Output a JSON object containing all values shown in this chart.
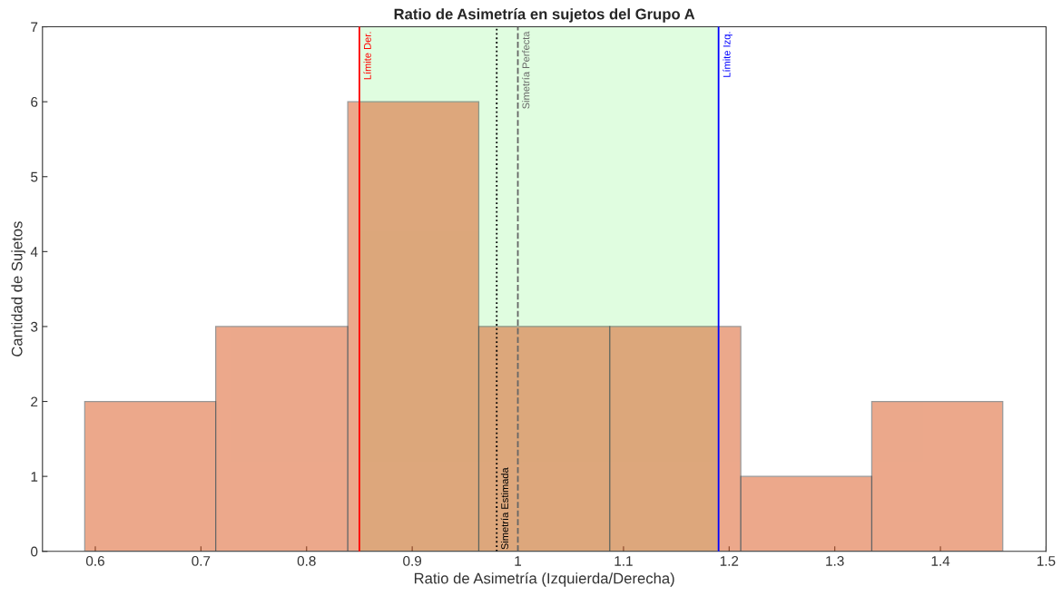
{
  "chart_data": {
    "type": "histogram",
    "title": "Ratio de Asimetría en sujetos del Grupo A",
    "xlabel": "Ratio de Asimetría (Izquierda/Derecha)",
    "ylabel": "Cantidad de Sujetos",
    "bins": [
      0.59,
      0.714,
      0.839,
      0.963,
      1.087,
      1.211,
      1.335,
      1.459
    ],
    "values": [
      2,
      3,
      6,
      3,
      3,
      1,
      2
    ],
    "color": "#d95319",
    "xlim": [
      0.55,
      1.5
    ],
    "xticks": [
      0.6,
      0.7,
      0.8,
      0.9,
      1,
      1.1,
      1.2,
      1.3,
      1.4,
      1.5
    ],
    "ylim": [
      0,
      7
    ],
    "yticks": [
      0,
      1,
      2,
      3,
      4,
      5,
      6,
      7
    ],
    "grid": false,
    "bands": [
      {
        "axis": "x",
        "from": 0.85,
        "to": 1.19,
        "color": "#ccfccc"
      }
    ],
    "ref_lines": [
      {
        "axis": "x",
        "value": 0.85,
        "label": "Límite Der.",
        "color": "#ff0000",
        "line_style": "solid"
      },
      {
        "axis": "x",
        "value": 1.19,
        "label": "Límite Izq.",
        "color": "#0000ff",
        "line_style": "solid"
      },
      {
        "axis": "x",
        "value": 0.98,
        "label": "Simetría Estimada",
        "color": "#000000",
        "line_style": "dotted"
      },
      {
        "axis": "x",
        "value": 1,
        "label": "Simetría Perfecta",
        "color": "#666666",
        "line_style": "dashed"
      }
    ]
  }
}
